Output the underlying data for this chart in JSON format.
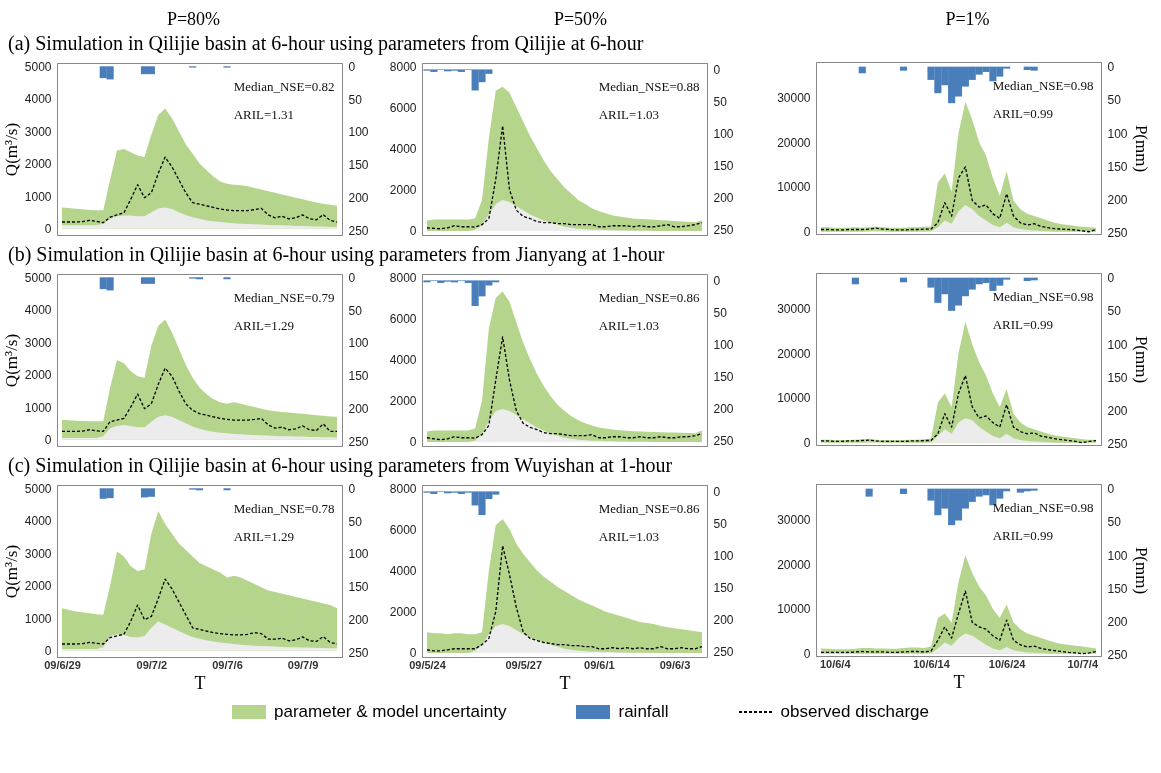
{
  "chart_data": [
    {
      "type": "line",
      "subtitle": "P=80%",
      "title": "(a) Simulation in Qilijie basin at 6-hour using parameters from Qilijie at 6-hour",
      "ylabel": "Q(m³/s)",
      "annotations": [
        "Median_NSE=0.82",
        "ARIL=1.31"
      ],
      "tick_labels": "y",
      "categories": [
        null,
        null,
        null,
        null,
        null,
        null,
        null,
        null,
        null,
        null,
        null,
        null,
        null,
        null,
        null,
        null,
        null,
        null,
        null,
        null,
        null,
        null,
        null,
        null,
        null,
        null,
        null,
        null,
        null,
        null,
        null,
        null,
        null,
        null,
        null,
        null,
        null,
        null,
        null,
        null,
        null
      ],
      "ylim": [
        -200,
        5100
      ],
      "yticks": [
        0,
        1000,
        2000,
        3000,
        4000,
        5000
      ],
      "y2lim": [
        257,
        -5
      ],
      "y2ticks": [
        0,
        50,
        100,
        150,
        200,
        250
      ],
      "series": [
        {
          "type": "area",
          "color": "#b5d48c",
          "values": [
            650,
            630,
            610,
            590,
            570,
            560,
            560,
            1500,
            2400,
            2450,
            2350,
            2250,
            2200,
            2900,
            3500,
            3700,
            3400,
            3000,
            2600,
            2300,
            2000,
            1800,
            1600,
            1450,
            1380,
            1350,
            1330,
            1300,
            1250,
            1200,
            1150,
            1100,
            1050,
            1000,
            950,
            900,
            850,
            800,
            760,
            730,
            700
          ]
        },
        {
          "type": "area",
          "color": "#ececec",
          "values": [
            100,
            100,
            100,
            100,
            100,
            100,
            150,
            300,
            380,
            400,
            400,
            380,
            380,
            500,
            620,
            650,
            600,
            500,
            420,
            350,
            300,
            250,
            220,
            200,
            180,
            160,
            150,
            140,
            130,
            120,
            110,
            100,
            100,
            90,
            80,
            80,
            70,
            60,
            60,
            50,
            50
          ]
        },
        {
          "type": "bar",
          "axis": "y2",
          "color": "#4a7ebb",
          "values": [
            0,
            0,
            0,
            0,
            0,
            0,
            18,
            20,
            0,
            0,
            0,
            0,
            12,
            12,
            0,
            0,
            0,
            0,
            0,
            2,
            0,
            0,
            0,
            0,
            2,
            0,
            0,
            0,
            0,
            0,
            0,
            0,
            0,
            0,
            0,
            0,
            0,
            0,
            0,
            0,
            0
          ]
        },
        {
          "color": "#000000",
          "line_style": "dashed",
          "values": [
            200,
            200,
            200,
            210,
            250,
            220,
            180,
            350,
            420,
            480,
            900,
            1350,
            950,
            1100,
            1700,
            2200,
            1900,
            1500,
            1100,
            800,
            750,
            700,
            650,
            600,
            570,
            550,
            550,
            550,
            580,
            620,
            420,
            330,
            380,
            300,
            330,
            420,
            300,
            270,
            430,
            250,
            200
          ]
        }
      ]
    },
    {
      "type": "line",
      "subtitle": "P=50%",
      "annotations": [
        "Median_NSE=0.88",
        "ARIL=1.03"
      ],
      "tick_labels": "y",
      "categories": [
        null,
        null,
        null,
        null,
        null,
        null,
        null,
        null,
        null,
        null,
        null,
        null,
        null,
        null,
        null,
        null,
        null,
        null,
        null,
        null,
        null,
        null,
        null,
        null,
        null,
        null,
        null,
        null,
        null,
        null,
        null,
        null,
        null,
        null,
        null,
        null,
        null,
        null,
        null,
        null,
        null
      ],
      "ylim": [
        -200,
        8150
      ],
      "yticks": [
        0,
        2000,
        4000,
        6000,
        8000
      ],
      "y2lim": [
        259,
        -10
      ],
      "y2ticks": [
        0,
        50,
        100,
        150,
        200,
        250
      ],
      "series": [
        {
          "type": "area",
          "color": "#b5d48c",
          "values": [
            500,
            550,
            550,
            550,
            550,
            550,
            550,
            600,
            1500,
            4500,
            6800,
            7000,
            6700,
            6000,
            5300,
            4600,
            4000,
            3400,
            2900,
            2500,
            2100,
            1800,
            1500,
            1300,
            1100,
            950,
            850,
            750,
            700,
            650,
            600,
            580,
            560,
            540,
            520,
            500,
            480,
            460,
            440,
            420,
            500
          ]
        },
        {
          "type": "area",
          "color": "#ececec",
          "values": [
            0,
            0,
            0,
            0,
            0,
            0,
            0,
            50,
            300,
            800,
            1300,
            1500,
            1400,
            1200,
            1000,
            800,
            650,
            500,
            400,
            300,
            200,
            150,
            100,
            80,
            60,
            50,
            40,
            30,
            20,
            20,
            10,
            10,
            10,
            0,
            0,
            0,
            0,
            0,
            0,
            0,
            0
          ]
        },
        {
          "type": "bar",
          "axis": "y2",
          "color": "#4a7ebb",
          "values": [
            2,
            4,
            1,
            3,
            2,
            4,
            1,
            33,
            20,
            7,
            0,
            0,
            0,
            0,
            0,
            0,
            0,
            0,
            0,
            0,
            0,
            0,
            0,
            0,
            0,
            0,
            0,
            0,
            0,
            0,
            0,
            0,
            0,
            0,
            0,
            0,
            0,
            0,
            0,
            0,
            0
          ]
        },
        {
          "color": "#000000",
          "line_style": "dashed",
          "values": [
            150,
            120,
            100,
            150,
            250,
            200,
            200,
            180,
            300,
            600,
            2500,
            5100,
            2000,
            1000,
            700,
            600,
            450,
            400,
            400,
            350,
            350,
            300,
            300,
            300,
            300,
            200,
            200,
            250,
            250,
            250,
            200,
            250,
            200,
            200,
            250,
            300,
            200,
            200,
            250,
            300,
            400
          ]
        }
      ]
    },
    {
      "type": "line",
      "subtitle": "P=1%",
      "y2label": "P(mm)",
      "annotations": [
        "Median_NSE=0.98",
        "ARIL=0.99"
      ],
      "tick_labels": "y",
      "categories": [
        null,
        null,
        null,
        null,
        null,
        null,
        null,
        null,
        null,
        null,
        null,
        null,
        null,
        null,
        null,
        null,
        null,
        null,
        null,
        null,
        null,
        null,
        null,
        null,
        null,
        null,
        null,
        null,
        null,
        null,
        null,
        null,
        null,
        null,
        null,
        null,
        null,
        null,
        null,
        null,
        null
      ],
      "ylim": [
        -500,
        37900
      ],
      "yticks": [
        0,
        10000,
        20000,
        30000
      ],
      "y2lim": [
        252,
        -7
      ],
      "y2ticks": [
        0,
        50,
        100,
        150,
        200,
        250
      ],
      "series": [
        {
          "type": "area",
          "color": "#b5d48c",
          "values": [
            1000,
            1000,
            900,
            900,
            900,
            1000,
            900,
            1000,
            1200,
            1000,
            900,
            900,
            900,
            1000,
            1000,
            1100,
            1200,
            11000,
            13000,
            9000,
            22000,
            29000,
            25000,
            20000,
            17000,
            12000,
            8000,
            13500,
            7000,
            5000,
            4000,
            3500,
            3000,
            2500,
            2000,
            1700,
            1500,
            1300,
            1100,
            1000,
            900
          ]
        },
        {
          "type": "area",
          "color": "#ececec",
          "values": [
            0,
            0,
            0,
            0,
            0,
            0,
            0,
            100,
            200,
            100,
            0,
            0,
            0,
            0,
            0,
            0,
            100,
            1000,
            2500,
            1800,
            4500,
            6000,
            5000,
            3500,
            2500,
            1500,
            1000,
            2000,
            1000,
            600,
            400,
            300,
            200,
            100,
            0,
            0,
            0,
            0,
            0,
            0,
            0
          ]
        },
        {
          "type": "bar",
          "axis": "y2",
          "color": "#4a7ebb",
          "values": [
            0,
            0,
            0,
            0,
            0,
            0,
            10,
            0,
            0,
            0,
            0,
            0,
            6,
            0,
            0,
            0,
            20,
            40,
            28,
            55,
            45,
            30,
            20,
            12,
            8,
            22,
            15,
            3,
            0,
            0,
            5,
            6,
            0,
            0,
            0,
            0,
            0,
            0,
            0,
            0,
            0
          ]
        },
        {
          "color": "#000000",
          "line_style": "dashed",
          "values": [
            500,
            500,
            400,
            400,
            500,
            500,
            500,
            600,
            800,
            600,
            500,
            400,
            400,
            500,
            500,
            600,
            600,
            2000,
            6500,
            3500,
            12000,
            14500,
            7000,
            5500,
            6000,
            4000,
            3000,
            8500,
            3500,
            2000,
            1500,
            1800,
            1200,
            900,
            700,
            600,
            500,
            400,
            200,
            0,
            500
          ]
        }
      ]
    },
    {
      "type": "line",
      "title": "(b) Simulation in Qilijie basin at 6-hour using parameters from Jianyang at 1-hour",
      "ylabel": "Q(m³/s)",
      "annotations": [
        "Median_NSE=0.79",
        "ARIL=1.29"
      ],
      "tick_labels": "y",
      "categories": [
        null,
        null,
        null,
        null,
        null,
        null,
        null,
        null,
        null,
        null,
        null,
        null,
        null,
        null,
        null,
        null,
        null,
        null,
        null,
        null,
        null,
        null,
        null,
        null,
        null,
        null,
        null,
        null,
        null,
        null,
        null,
        null,
        null,
        null,
        null,
        null,
        null,
        null,
        null,
        null,
        null
      ],
      "ylim": [
        -200,
        5100
      ],
      "yticks": [
        0,
        1000,
        2000,
        3000,
        4000,
        5000
      ],
      "y2lim": [
        257,
        -5
      ],
      "y2ticks": [
        0,
        50,
        100,
        150,
        200,
        250
      ],
      "series": [
        {
          "type": "area",
          "color": "#b5d48c",
          "values": [
            600,
            590,
            580,
            570,
            560,
            560,
            560,
            1600,
            2450,
            2350,
            2100,
            1950,
            1900,
            2900,
            3500,
            3700,
            3300,
            2800,
            2300,
            1900,
            1600,
            1400,
            1250,
            1150,
            1100,
            1150,
            1100,
            1050,
            1000,
            950,
            900,
            870,
            850,
            830,
            810,
            790,
            770,
            750,
            730,
            710,
            700
          ]
        },
        {
          "type": "area",
          "color": "#ececec",
          "values": [
            50,
            50,
            50,
            50,
            50,
            50,
            100,
            350,
            420,
            450,
            420,
            380,
            380,
            550,
            700,
            750,
            700,
            600,
            500,
            400,
            330,
            280,
            240,
            210,
            190,
            170,
            160,
            150,
            140,
            130,
            120,
            110,
            100,
            100,
            90,
            90,
            80,
            80,
            70,
            70,
            60
          ]
        },
        {
          "type": "bar",
          "axis": "y2",
          "color": "#4a7ebb",
          "values": [
            0,
            0,
            0,
            0,
            0,
            0,
            18,
            20,
            0,
            0,
            0,
            0,
            10,
            10,
            0,
            0,
            0,
            0,
            0,
            2,
            3,
            0,
            0,
            0,
            3,
            0,
            0,
            0,
            0,
            0,
            0,
            0,
            0,
            0,
            0,
            0,
            0,
            0,
            0,
            0,
            0
          ]
        },
        {
          "color": "#000000",
          "line_style": "dashed",
          "values": [
            250,
            250,
            250,
            260,
            300,
            270,
            250,
            550,
            600,
            650,
            1000,
            1400,
            950,
            1100,
            1700,
            2200,
            1950,
            1500,
            1100,
            900,
            800,
            750,
            700,
            650,
            620,
            600,
            600,
            600,
            620,
            650,
            450,
            350,
            380,
            300,
            330,
            420,
            300,
            280,
            480,
            250,
            250
          ]
        }
      ]
    },
    {
      "type": "line",
      "annotations": [
        "Median_NSE=0.86",
        "ARIL=1.03"
      ],
      "tick_labels": "y",
      "categories": [
        null,
        null,
        null,
        null,
        null,
        null,
        null,
        null,
        null,
        null,
        null,
        null,
        null,
        null,
        null,
        null,
        null,
        null,
        null,
        null,
        null,
        null,
        null,
        null,
        null,
        null,
        null,
        null,
        null,
        null,
        null,
        null,
        null,
        null,
        null,
        null,
        null,
        null,
        null,
        null,
        null
      ],
      "ylim": [
        -200,
        8150
      ],
      "yticks": [
        0,
        2000,
        4000,
        6000,
        8000
      ],
      "y2lim": [
        259,
        -10
      ],
      "y2ticks": [
        0,
        50,
        100,
        150,
        200,
        250
      ],
      "series": [
        {
          "type": "area",
          "color": "#b5d48c",
          "values": [
            500,
            550,
            550,
            550,
            550,
            550,
            550,
            650,
            2000,
            5500,
            7000,
            7300,
            6800,
            5800,
            4800,
            4000,
            3300,
            2700,
            2200,
            1800,
            1500,
            1250,
            1050,
            900,
            800,
            700,
            650,
            600,
            560,
            540,
            520,
            500,
            490,
            480,
            470,
            460,
            450,
            440,
            430,
            420,
            550
          ]
        },
        {
          "type": "area",
          "color": "#ececec",
          "values": [
            0,
            0,
            0,
            0,
            0,
            0,
            0,
            50,
            400,
            1000,
            1500,
            1600,
            1500,
            1300,
            1100,
            900,
            700,
            550,
            400,
            300,
            200,
            150,
            100,
            80,
            60,
            50,
            40,
            30,
            20,
            20,
            10,
            10,
            10,
            0,
            0,
            0,
            0,
            0,
            0,
            0,
            0
          ]
        },
        {
          "type": "bar",
          "axis": "y2",
          "color": "#4a7ebb",
          "values": [
            3,
            1,
            4,
            2,
            3,
            1,
            4,
            40,
            25,
            8,
            3,
            0,
            0,
            0,
            0,
            0,
            0,
            0,
            0,
            0,
            0,
            0,
            0,
            0,
            0,
            0,
            0,
            0,
            0,
            0,
            0,
            0,
            0,
            0,
            0,
            0,
            0,
            0,
            0,
            0,
            0
          ]
        },
        {
          "color": "#000000",
          "line_style": "dashed",
          "values": [
            200,
            150,
            100,
            150,
            250,
            200,
            200,
            180,
            350,
            800,
            3000,
            5100,
            3000,
            1500,
            900,
            700,
            600,
            450,
            400,
            400,
            350,
            300,
            300,
            300,
            350,
            200,
            200,
            250,
            250,
            200,
            200,
            250,
            200,
            200,
            250,
            200,
            200,
            250,
            250,
            300,
            400
          ]
        }
      ]
    },
    {
      "type": "line",
      "y2label": "P(mm)",
      "annotations": [
        "Median_NSE=0.98",
        "ARIL=0.99"
      ],
      "tick_labels": "y",
      "categories": [
        null,
        null,
        null,
        null,
        null,
        null,
        null,
        null,
        null,
        null,
        null,
        null,
        null,
        null,
        null,
        null,
        null,
        null,
        null,
        null,
        null,
        null,
        null,
        null,
        null,
        null,
        null,
        null,
        null,
        null,
        null,
        null,
        null,
        null,
        null,
        null,
        null,
        null,
        null,
        null,
        null
      ],
      "ylim": [
        -500,
        37900
      ],
      "yticks": [
        0,
        10000,
        20000,
        30000
      ],
      "y2lim": [
        252,
        -7
      ],
      "y2ticks": [
        0,
        50,
        100,
        150,
        200,
        250
      ],
      "series": [
        {
          "type": "area",
          "color": "#b5d48c",
          "values": [
            700,
            700,
            600,
            600,
            600,
            700,
            800,
            900,
            700,
            600,
            600,
            600,
            600,
            700,
            700,
            800,
            900,
            9000,
            11000,
            8000,
            20000,
            27000,
            22000,
            18000,
            15000,
            11000,
            8000,
            12000,
            6500,
            4500,
            3500,
            3000,
            2500,
            2000,
            1600,
            1400,
            1200,
            1000,
            800,
            700,
            700
          ]
        },
        {
          "type": "area",
          "color": "#ececec",
          "values": [
            0,
            0,
            0,
            0,
            0,
            0,
            0,
            100,
            100,
            0,
            0,
            0,
            0,
            0,
            0,
            0,
            100,
            1500,
            3000,
            2000,
            4500,
            5500,
            5000,
            3500,
            2500,
            1500,
            1000,
            2000,
            1000,
            600,
            400,
            300,
            200,
            100,
            0,
            0,
            0,
            0,
            0,
            0,
            0
          ]
        },
        {
          "type": "bar",
          "axis": "y2",
          "color": "#4a7ebb",
          "values": [
            0,
            0,
            0,
            0,
            0,
            10,
            0,
            0,
            0,
            0,
            0,
            0,
            7,
            0,
            0,
            0,
            15,
            38,
            25,
            50,
            42,
            28,
            18,
            10,
            8,
            20,
            12,
            3,
            0,
            0,
            5,
            4,
            0,
            0,
            0,
            0,
            0,
            0,
            0,
            0,
            0
          ]
        },
        {
          "color": "#000000",
          "line_style": "dashed",
          "values": [
            400,
            400,
            300,
            300,
            400,
            400,
            500,
            600,
            400,
            300,
            300,
            300,
            300,
            400,
            400,
            500,
            500,
            2000,
            6500,
            3500,
            11000,
            15000,
            8000,
            5500,
            6000,
            4500,
            3500,
            8500,
            3500,
            2500,
            2000,
            2200,
            1500,
            1200,
            900,
            700,
            500,
            300,
            0,
            300,
            500
          ]
        }
      ]
    },
    {
      "type": "line",
      "title": "(c) Simulation in Qilijie basin at 6-hour using parameters from Wuyishan at 1-hour",
      "ylabel": "Q(m³/s)",
      "xlabel": "T",
      "annotations": [
        "Median_NSE=0.78",
        "ARIL=1.29"
      ],
      "categories": [
        "09/6/29",
        null,
        null,
        null,
        null,
        null,
        null,
        null,
        null,
        null,
        null,
        null,
        null,
        "09/7/2",
        null,
        null,
        null,
        null,
        null,
        null,
        null,
        null,
        null,
        null,
        "09/7/6",
        null,
        null,
        null,
        null,
        null,
        null,
        null,
        null,
        null,
        null,
        "09/7/9",
        null,
        null,
        null,
        null,
        null
      ],
      "ylim": [
        -200,
        5100
      ],
      "yticks": [
        0,
        1000,
        2000,
        3000,
        4000,
        5000
      ],
      "y2lim": [
        257,
        -5
      ],
      "y2ticks": [
        0,
        50,
        100,
        150,
        200,
        250
      ],
      "series": [
        {
          "type": "area",
          "color": "#b5d48c",
          "values": [
            1300,
            1250,
            1200,
            1180,
            1150,
            1120,
            1100,
            2000,
            3050,
            2900,
            2600,
            2450,
            2500,
            3600,
            4300,
            3900,
            3600,
            3300,
            3100,
            2900,
            2700,
            2600,
            2500,
            2400,
            2250,
            2300,
            2250,
            2150,
            2050,
            1950,
            1850,
            1800,
            1750,
            1700,
            1650,
            1600,
            1550,
            1500,
            1450,
            1400,
            1300
          ]
        },
        {
          "type": "area",
          "color": "#ececec",
          "values": [
            50,
            50,
            50,
            50,
            50,
            50,
            100,
            450,
            500,
            480,
            420,
            400,
            450,
            700,
            900,
            800,
            700,
            600,
            500,
            420,
            360,
            320,
            280,
            250,
            220,
            200,
            180,
            160,
            150,
            140,
            130,
            120,
            110,
            100,
            100,
            90,
            90,
            80,
            80,
            70,
            70
          ]
        },
        {
          "type": "bar",
          "axis": "y2",
          "color": "#4a7ebb",
          "values": [
            0,
            0,
            0,
            0,
            0,
            0,
            16,
            15,
            0,
            0,
            0,
            0,
            14,
            13,
            0,
            0,
            0,
            0,
            0,
            2,
            3,
            0,
            0,
            0,
            3,
            0,
            0,
            0,
            0,
            0,
            0,
            0,
            0,
            0,
            0,
            0,
            0,
            0,
            0,
            0,
            0
          ]
        },
        {
          "color": "#000000",
          "line_style": "dashed",
          "values": [
            200,
            200,
            200,
            210,
            250,
            220,
            200,
            400,
            450,
            500,
            900,
            1400,
            950,
            1050,
            1600,
            2200,
            1900,
            1500,
            1100,
            700,
            650,
            600,
            550,
            520,
            500,
            480,
            480,
            500,
            550,
            520,
            350,
            350,
            380,
            300,
            330,
            420,
            300,
            280,
            430,
            250,
            200
          ]
        }
      ]
    },
    {
      "type": "line",
      "xlabel": "T",
      "annotations": [
        "Median_NSE=0.86",
        "ARIL=1.03"
      ],
      "categories": [
        "09/5/24",
        null,
        null,
        null,
        null,
        null,
        null,
        null,
        null,
        null,
        null,
        null,
        null,
        null,
        "09/5/27",
        null,
        null,
        null,
        null,
        null,
        null,
        null,
        null,
        null,
        null,
        "09/6/1",
        null,
        null,
        null,
        null,
        null,
        null,
        null,
        null,
        null,
        null,
        "09/6/3",
        null,
        null,
        null,
        null
      ],
      "ylim": [
        -200,
        8150
      ],
      "yticks": [
        0,
        2000,
        4000,
        6000,
        8000
      ],
      "y2lim": [
        259,
        -10
      ],
      "y2ticks": [
        0,
        50,
        100,
        150,
        200,
        250
      ],
      "series": [
        {
          "type": "area",
          "color": "#b5d48c",
          "values": [
            1000,
            950,
            950,
            900,
            950,
            950,
            900,
            900,
            1000,
            4000,
            6200,
            6500,
            6000,
            5300,
            4800,
            4400,
            4000,
            3700,
            3450,
            3200,
            3000,
            2800,
            2600,
            2450,
            2300,
            2150,
            2000,
            1900,
            1800,
            1700,
            1600,
            1500,
            1450,
            1400,
            1300,
            1250,
            1200,
            1150,
            1100,
            1050,
            1000
          ]
        },
        {
          "type": "area",
          "color": "#ececec",
          "values": [
            0,
            0,
            0,
            0,
            0,
            0,
            0,
            100,
            400,
            900,
            1300,
            1400,
            1300,
            1100,
            900,
            750,
            600,
            500,
            400,
            300,
            200,
            150,
            100,
            80,
            60,
            50,
            40,
            30,
            20,
            20,
            10,
            10,
            10,
            0,
            0,
            0,
            0,
            0,
            0,
            0,
            0
          ]
        },
        {
          "type": "bar",
          "axis": "y2",
          "color": "#4a7ebb",
          "values": [
            2,
            4,
            1,
            3,
            2,
            4,
            2,
            22,
            37,
            12,
            5,
            0,
            0,
            0,
            0,
            0,
            0,
            0,
            0,
            0,
            0,
            0,
            0,
            0,
            0,
            0,
            0,
            0,
            0,
            0,
            0,
            0,
            0,
            0,
            0,
            0,
            0,
            0,
            0,
            0,
            0
          ]
        },
        {
          "color": "#000000",
          "line_style": "dashed",
          "values": [
            150,
            100,
            100,
            150,
            200,
            200,
            200,
            200,
            400,
            700,
            2000,
            5200,
            3800,
            2200,
            1000,
            700,
            600,
            500,
            450,
            400,
            400,
            350,
            350,
            300,
            300,
            200,
            200,
            250,
            200,
            250,
            200,
            250,
            200,
            200,
            300,
            200,
            200,
            250,
            200,
            200,
            300
          ]
        }
      ]
    },
    {
      "type": "line",
      "y2label": "P(mm)",
      "xlabel": "T",
      "annotations": [
        "Median_NSE=0.98",
        "ARIL=0.99"
      ],
      "legend": "bottom",
      "categories": [
        null,
        null,
        "10/6/4",
        null,
        null,
        null,
        null,
        null,
        null,
        null,
        null,
        null,
        null,
        null,
        null,
        null,
        "10/6/14",
        null,
        null,
        null,
        null,
        null,
        null,
        null,
        null,
        null,
        null,
        "10/6/24",
        null,
        null,
        null,
        null,
        null,
        null,
        null,
        null,
        null,
        null,
        "10/7/4",
        null,
        null
      ],
      "ylim": [
        -500,
        37900
      ],
      "yticks": [
        0,
        10000,
        20000,
        30000
      ],
      "y2lim": [
        252,
        -7
      ],
      "y2ticks": [
        0,
        50,
        100,
        150,
        200,
        250
      ],
      "series": [
        {
          "name": "parameter & model uncertainty",
          "type": "area",
          "color": "#b5d48c",
          "values": [
            1200,
            1100,
            1000,
            1000,
            1000,
            1100,
            1300,
            1300,
            1200,
            1200,
            1100,
            1100,
            1300,
            1400,
            1400,
            1300,
            1600,
            8000,
            9000,
            7000,
            16000,
            22000,
            18000,
            15000,
            13000,
            10000,
            8000,
            11000,
            7000,
            5500,
            4500,
            4000,
            3500,
            3000,
            2500,
            2200,
            2000,
            1800,
            1600,
            1400,
            1200
          ]
        },
        {
          "type": "area",
          "color": "#ececec",
          "values": [
            0,
            0,
            0,
            0,
            0,
            0,
            0,
            0,
            0,
            0,
            0,
            0,
            0,
            0,
            0,
            0,
            100,
            1200,
            2500,
            1800,
            3500,
            4500,
            4000,
            3000,
            2000,
            1200,
            800,
            1500,
            800,
            500,
            300,
            200,
            100,
            0,
            0,
            0,
            0,
            0,
            0,
            0,
            0
          ]
        },
        {
          "name": "rainfall",
          "type": "bar",
          "axis": "y2",
          "color": "#4a7ebb",
          "values": [
            0,
            0,
            0,
            0,
            0,
            0,
            0,
            12,
            0,
            0,
            0,
            0,
            8,
            0,
            0,
            0,
            18,
            40,
            30,
            55,
            48,
            30,
            20,
            12,
            10,
            25,
            15,
            4,
            0,
            6,
            4,
            3,
            0,
            0,
            0,
            0,
            0,
            0,
            0,
            0,
            0
          ]
        },
        {
          "name": "observed discharge",
          "color": "#000000",
          "line_style": "dashed",
          "values": [
            300,
            300,
            300,
            300,
            300,
            400,
            500,
            400,
            400,
            400,
            300,
            300,
            400,
            500,
            500,
            400,
            600,
            3000,
            6000,
            3500,
            9000,
            14000,
            7000,
            6000,
            5500,
            4000,
            3000,
            7500,
            3000,
            2000,
            1500,
            1700,
            1200,
            900,
            700,
            500,
            300,
            200,
            0,
            200,
            500
          ]
        }
      ]
    }
  ]
}
